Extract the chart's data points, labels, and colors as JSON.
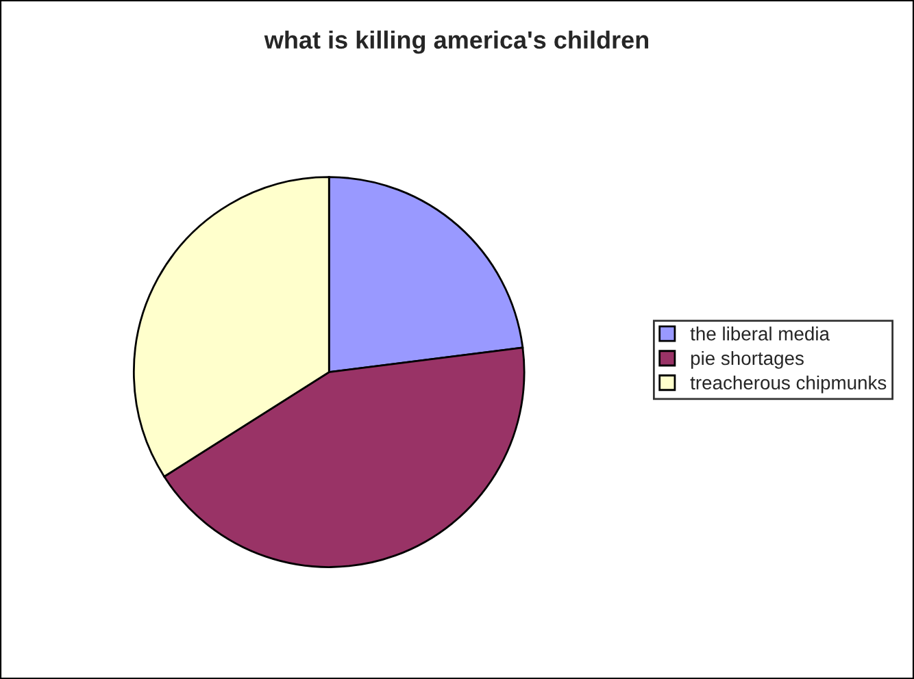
{
  "chart_data": {
    "type": "pie",
    "title": "what is killing america's children",
    "categories": [
      "the liberal media",
      "pie shortages",
      "treacherous chipmunks"
    ],
    "values": [
      23,
      43,
      34
    ],
    "colors": [
      "#9999ff",
      "#993366",
      "#ffffcc"
    ],
    "legend": "right"
  }
}
